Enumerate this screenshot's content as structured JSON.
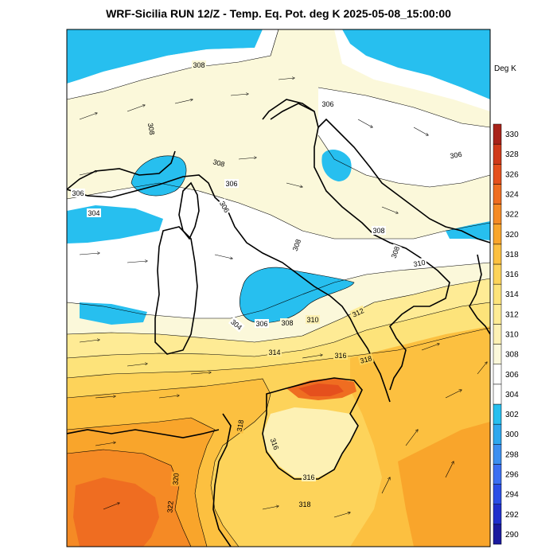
{
  "header": {
    "title": "WRF-Sicilia RUN 12/Z - Temp. Eq. Pot. deg K 2025-05-08_15:00:00"
  },
  "colorbar": {
    "unit": "Deg K",
    "levels": [
      290,
      292,
      294,
      296,
      298,
      300,
      302,
      304,
      306,
      308,
      310,
      312,
      314,
      316,
      318,
      320,
      322,
      324,
      326,
      328,
      330
    ],
    "colors": [
      "#1a1a9e",
      "#1f2fcc",
      "#2a4ee6",
      "#3b6ff2",
      "#3c8ff0",
      "#2ea8ee",
      "#27bfef",
      "#ffffff",
      "#ffffff",
      "#fbf8da",
      "#fdf1b4",
      "#feeb95",
      "#fde37a",
      "#fdd35a",
      "#fcc040",
      "#f9a52b",
      "#f58a25",
      "#ef6d21",
      "#e5501d",
      "#d03a1a",
      "#a8231a"
    ]
  },
  "contour_labels": [
    {
      "id": "c1",
      "text": "308"
    },
    {
      "id": "c2",
      "text": "306"
    },
    {
      "id": "c3",
      "text": "308"
    },
    {
      "id": "c4",
      "text": "308"
    },
    {
      "id": "c5",
      "text": "306"
    },
    {
      "id": "c6",
      "text": "306"
    },
    {
      "id": "c7",
      "text": "306"
    },
    {
      "id": "c8",
      "text": "304"
    },
    {
      "id": "c9",
      "text": "306"
    },
    {
      "id": "c10",
      "text": "308"
    },
    {
      "id": "c11",
      "text": "308"
    },
    {
      "id": "c12",
      "text": "308"
    },
    {
      "id": "c13",
      "text": "310"
    },
    {
      "id": "c14",
      "text": "312"
    },
    {
      "id": "c15",
      "text": "304"
    },
    {
      "id": "c16",
      "text": "306"
    },
    {
      "id": "c17",
      "text": "308"
    },
    {
      "id": "c18",
      "text": "310"
    },
    {
      "id": "c19",
      "text": "314"
    },
    {
      "id": "c20",
      "text": "316"
    },
    {
      "id": "c21",
      "text": "318"
    },
    {
      "id": "c22",
      "text": "318"
    },
    {
      "id": "c23",
      "text": "316"
    },
    {
      "id": "c24",
      "text": "320"
    },
    {
      "id": "c25",
      "text": "316"
    },
    {
      "id": "c26",
      "text": "318"
    },
    {
      "id": "c27",
      "text": "322"
    }
  ]
}
